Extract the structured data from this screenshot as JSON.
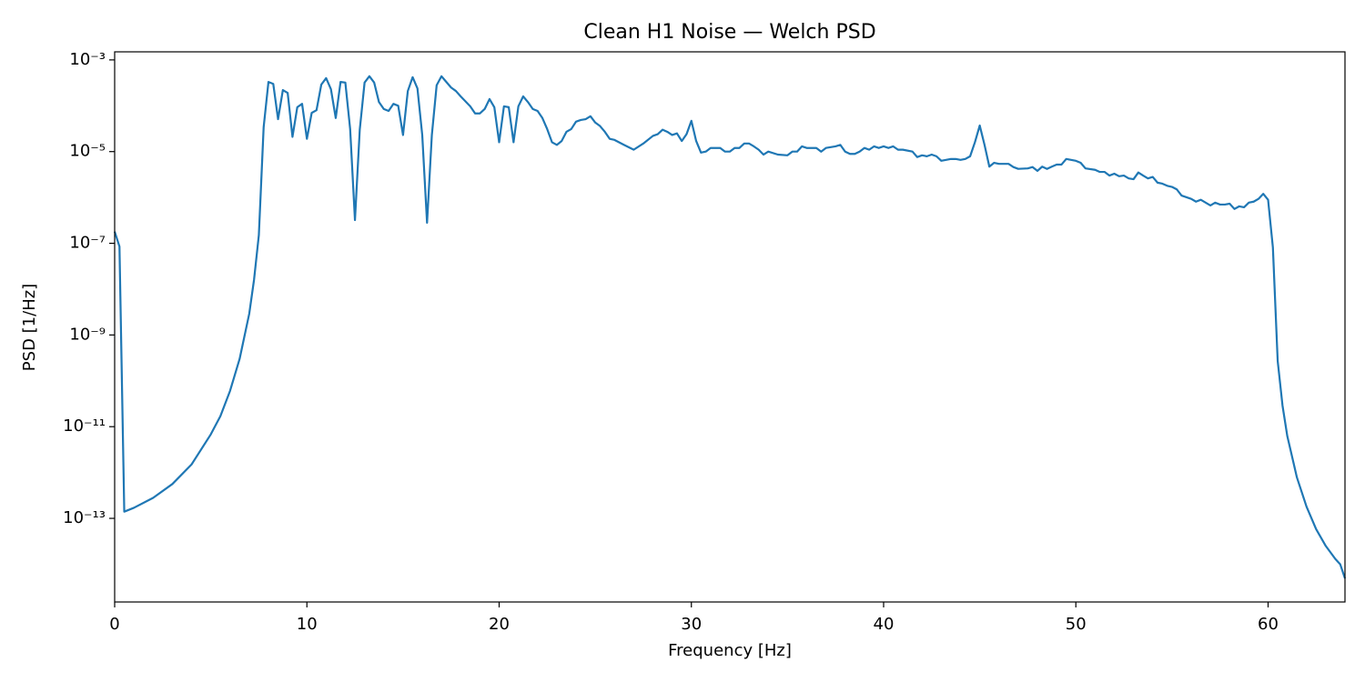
{
  "chart_data": {
    "type": "line",
    "title": "Clean H1 Noise — Welch PSD",
    "xlabel": "Frequency [Hz]",
    "ylabel": "PSD [1/Hz]",
    "yscale": "log",
    "grid": false,
    "color": "#1f77b4",
    "xlim": [
      0,
      64
    ],
    "xticks": [
      0,
      10,
      20,
      30,
      40,
      50,
      60
    ],
    "ylim": [
      1.5e-15,
      0.0015
    ],
    "yticks": [
      {
        "value": 0.001,
        "label": "10⁻³"
      },
      {
        "value": 1e-05,
        "label": "10⁻⁵"
      },
      {
        "value": 1e-07,
        "label": "10⁻⁷"
      },
      {
        "value": 1e-09,
        "label": "10⁻⁹"
      },
      {
        "value": 1e-11,
        "label": "10⁻¹¹"
      },
      {
        "value": 1e-13,
        "label": "10⁻¹³"
      }
    ],
    "x": [
      0,
      0.25,
      0.5,
      1,
      2,
      3,
      4,
      5,
      5.5,
      6,
      6.5,
      7,
      7.25,
      7.5,
      7.75,
      8,
      8.25,
      8.5,
      8.75,
      9,
      9.25,
      9.5,
      9.75,
      10,
      10.25,
      10.5,
      10.75,
      11,
      11.25,
      11.5,
      11.75,
      12,
      12.25,
      12.5,
      12.75,
      13,
      13.25,
      13.5,
      13.75,
      14,
      14.25,
      14.5,
      14.75,
      15,
      15.25,
      15.5,
      15.75,
      16,
      16.25,
      16.5,
      16.75,
      17,
      17.5,
      17.75,
      18,
      18.5,
      18.75,
      19,
      19.25,
      19.5,
      19.75,
      20,
      20.25,
      20.5,
      20.75,
      21,
      21.25,
      21.5,
      21.75,
      22,
      22.25,
      22.5,
      22.75,
      23,
      23.25,
      23.5,
      23.75,
      24,
      24.25,
      24.5,
      24.75,
      25,
      25.25,
      25.5,
      25.75,
      26,
      26.5,
      27,
      27.5,
      28,
      28.25,
      28.5,
      28.75,
      29,
      29.25,
      29.5,
      29.75,
      30,
      30.25,
      30.5,
      30.75,
      31,
      31.5,
      31.75,
      32,
      32.25,
      32.5,
      32.75,
      33,
      33.25,
      33.5,
      33.75,
      34,
      34.5,
      35,
      35.25,
      35.5,
      35.75,
      36,
      36.5,
      36.75,
      37,
      37.5,
      37.75,
      38,
      38.25,
      38.5,
      38.75,
      39,
      39.25,
      39.5,
      39.75,
      40,
      40.25,
      40.5,
      40.75,
      41,
      41.5,
      41.75,
      42,
      42.25,
      42.5,
      42.75,
      43,
      43.5,
      43.75,
      44,
      44.25,
      44.5,
      44.75,
      45,
      45.25,
      45.5,
      45.75,
      46,
      46.5,
      46.75,
      47,
      47.5,
      47.75,
      48,
      48.25,
      48.5,
      48.75,
      49,
      49.25,
      49.5,
      50,
      50.25,
      50.5,
      51,
      51.25,
      51.5,
      51.75,
      52,
      52.25,
      52.5,
      52.75,
      53,
      53.25,
      53.5,
      53.75,
      54,
      54.25,
      54.5,
      54.75,
      55,
      55.25,
      55.5,
      56,
      56.25,
      56.5,
      57,
      57.25,
      57.5,
      57.75,
      58,
      58.25,
      58.5,
      58.75,
      59,
      59.25,
      59.5,
      59.75,
      60,
      60.25,
      60.5,
      60.75,
      61,
      61.5,
      62,
      62.5,
      63,
      63.5,
      63.75,
      64
    ],
    "values": [
      1.8e-07,
      8.5e-08,
      1.4e-13,
      1.7e-13,
      2.8e-13,
      5.6e-13,
      1.5e-12,
      6.8e-12,
      1.7e-11,
      6e-11,
      3e-10,
      2.9e-09,
      1.6e-08,
      1.5e-07,
      3.4e-05,
      0.00033,
      0.0003,
      5.1e-05,
      0.00022,
      0.00019,
      2.1e-05,
      9.3e-05,
      0.00011,
      1.9e-05,
      7e-05,
      8e-05,
      0.00029,
      0.0004,
      0.00023,
      5.4e-05,
      0.00033,
      0.00032,
      3.1e-05,
      3.2e-07,
      3e-05,
      0.00032,
      0.00044,
      0.00032,
      0.00012,
      8.5e-05,
      7.7e-05,
      0.00011,
      0.0001,
      2.3e-05,
      0.00021,
      0.00042,
      0.00024,
      2.3e-05,
      2.8e-07,
      2.3e-05,
      0.00028,
      0.00044,
      0.00025,
      0.00021,
      0.00016,
      9.7e-05,
      6.8e-05,
      6.8e-05,
      8.5e-05,
      0.00014,
      9.3e-05,
      1.6e-05,
      9.7e-05,
      9.3e-05,
      1.6e-05,
      9.7e-05,
      0.00016,
      0.00012,
      8.5e-05,
      7.7e-05,
      5.4e-05,
      3.1e-05,
      1.6e-05,
      1.4e-05,
      1.7e-05,
      2.7e-05,
      3.1e-05,
      4.5e-05,
      4.9e-05,
      5.1e-05,
      5.9e-05,
      4.3e-05,
      3.6e-05,
      2.7e-05,
      1.9e-05,
      1.8e-05,
      1.4e-05,
      1.1e-05,
      1.5e-05,
      2.2e-05,
      2.4e-05,
      3e-05,
      2.7e-05,
      2.3e-05,
      2.5e-05,
      1.7e-05,
      2.4e-05,
      4.7e-05,
      1.7e-05,
      9.5e-06,
      1e-05,
      1.2e-05,
      1.2e-05,
      1e-05,
      1e-05,
      1.2e-05,
      1.2e-05,
      1.5e-05,
      1.5e-05,
      1.3e-05,
      1.1e-05,
      8.6e-06,
      1e-05,
      8.6e-06,
      8.3e-06,
      1e-05,
      1e-05,
      1.3e-05,
      1.2e-05,
      1.2e-05,
      1e-05,
      1.2e-05,
      1.3e-05,
      1.4e-05,
      1e-05,
      8.9e-06,
      8.9e-06,
      1e-05,
      1.2e-05,
      1.1e-05,
      1.3e-05,
      1.2e-05,
      1.3e-05,
      1.2e-05,
      1.3e-05,
      1.1e-05,
      1.1e-05,
      1e-05,
      7.6e-06,
      8.3e-06,
      7.9e-06,
      8.6e-06,
      7.9e-06,
      6.3e-06,
      6.9e-06,
      6.9e-06,
      6.6e-06,
      6.9e-06,
      7.9e-06,
      1.6e-05,
      3.7e-05,
      1.4e-05,
      4.7e-06,
      5.7e-06,
      5.4e-06,
      5.4e-06,
      4.6e-06,
      4.2e-06,
      4.3e-06,
      4.6e-06,
      3.8e-06,
      4.7e-06,
      4.2e-06,
      4.7e-06,
      5.2e-06,
      5.2e-06,
      6.9e-06,
      6.3e-06,
      5.7e-06,
      4.3e-06,
      4e-06,
      3.6e-06,
      3.6e-06,
      3e-06,
      3.3e-06,
      2.9e-06,
      3e-06,
      2.6e-06,
      2.5e-06,
      3.5e-06,
      3e-06,
      2.6e-06,
      2.8e-06,
      2.1e-06,
      2e-06,
      1.8e-06,
      1.7e-06,
      1.5e-06,
      1.1e-06,
      9.3e-07,
      8.1e-07,
      8.9e-07,
      6.7e-07,
      7.7e-07,
      7e-07,
      7e-07,
      7.3e-07,
      5.6e-07,
      6.4e-07,
      6.1e-07,
      7.7e-07,
      8.1e-07,
      9.3e-07,
      1.2e-06,
      8.9e-07,
      8.1e-08,
      2.7e-10,
      2.9e-11,
      6.2e-12,
      7.8e-13,
      1.8e-13,
      5.8e-14,
      2.5e-14,
      1.3e-14,
      1e-14,
      4.9e-15
    ]
  }
}
